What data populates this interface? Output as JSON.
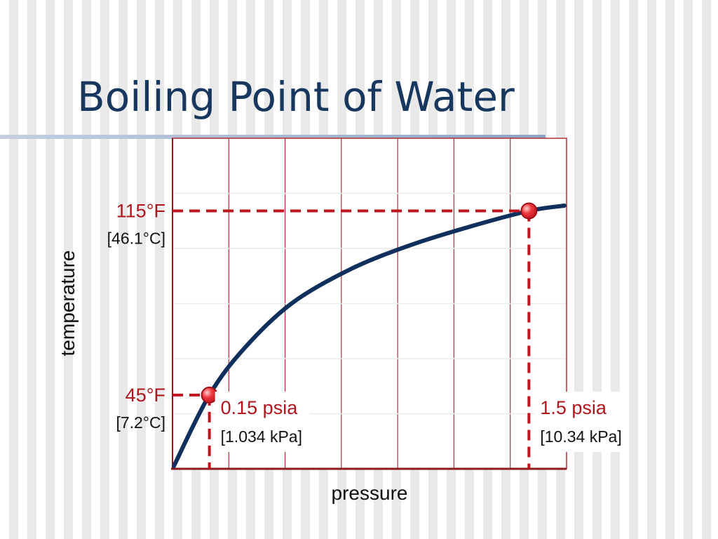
{
  "slide": {
    "title": "Boiling Point of Water"
  },
  "chart_data": {
    "type": "line",
    "title": "Boiling Point of Water",
    "xlabel": "pressure",
    "ylabel": "temperature",
    "grid": true,
    "series": [
      {
        "x": [
          0.0,
          0.15,
          0.3,
          0.5,
          0.75,
          1.0,
          1.25,
          1.5,
          1.65
        ],
        "values": [
          18,
          45,
          63,
          80,
          93,
          102,
          109,
          115,
          117
        ]
      }
    ],
    "markers": [
      {
        "x": 0.15,
        "y": 45,
        "temp_label": "45°F",
        "temp_sub": "[7.2°C]",
        "pressure_label": "0.15 psia",
        "pressure_sub": "[1.034 kPa]"
      },
      {
        "x": 1.5,
        "y": 115,
        "temp_label": "115°F",
        "temp_sub": "[46.1°C]",
        "pressure_label": "1.5 psia",
        "pressure_sub": "[10.34 kPa]"
      }
    ],
    "colors": {
      "curve": "#0f2f5c",
      "guide": "#c0141c",
      "marker": "#e8323a",
      "grid": "#b03038"
    }
  }
}
